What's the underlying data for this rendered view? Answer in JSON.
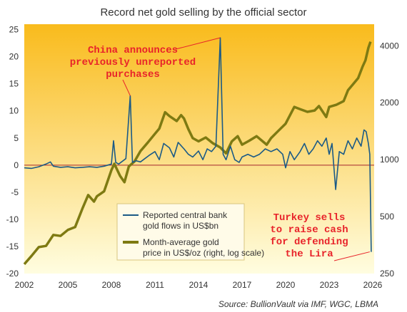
{
  "chart_data": {
    "type": "line",
    "title": "Record net gold selling by the official sector",
    "source": "Source: BullionVault via IMF, WGC, LBMA",
    "x_ticks": [
      "2002",
      "2005",
      "2008",
      "2011",
      "2014",
      "2017",
      "2020",
      "2023",
      "2026"
    ],
    "x_range": [
      2002.0,
      2026.1
    ],
    "y_left_ticks": [
      "25",
      "20",
      "15",
      "10",
      "5",
      "0",
      "-5",
      "-10",
      "-15",
      "-20"
    ],
    "y_left_range": [
      -20,
      26
    ],
    "y_right_ticks": [
      "4000",
      "2000",
      "1000",
      "500",
      "250"
    ],
    "y_right_range": [
      250,
      5200
    ],
    "y_right_scale": "log",
    "zero_line": true,
    "legend_position": "bottom-center",
    "colors": {
      "background_top": "#f9bb1c",
      "background_bottom": "#fffde0",
      "flows": "#1b5a86",
      "price": "#7e7a12",
      "zero_line": "#a5262d",
      "annotation": "#e8232a"
    },
    "annotations": [
      {
        "lines": [
          "China announces",
          "previously unreported",
          "purchases"
        ],
        "points_to": [
          {
            "x": 2009.3,
            "y": 12.8
          },
          {
            "x": 2015.5,
            "y": 23.5
          }
        ]
      },
      {
        "lines": [
          "Turkey sells",
          "to raise cash",
          "for defending",
          "the Lira"
        ],
        "points_to": [
          {
            "x": 2025.8,
            "y": -16
          }
        ]
      }
    ],
    "series": [
      {
        "name": "Reported central bank gold flows in US$bn",
        "axis": "left",
        "x": [
          2002.0,
          2002.5,
          2003.0,
          2003.5,
          2003.8,
          2004.0,
          2004.5,
          2005.0,
          2005.5,
          2006.0,
          2006.5,
          2007.0,
          2007.5,
          2008.0,
          2008.15,
          2008.3,
          2008.5,
          2009.0,
          2009.3,
          2009.45,
          2009.7,
          2010.0,
          2010.3,
          2010.6,
          2011.0,
          2011.3,
          2011.6,
          2012.0,
          2012.3,
          2012.6,
          2013.0,
          2013.3,
          2013.6,
          2014.0,
          2014.3,
          2014.6,
          2014.9,
          2015.2,
          2015.5,
          2015.7,
          2015.9,
          2016.2,
          2016.5,
          2016.8,
          2017.0,
          2017.4,
          2017.8,
          2018.2,
          2018.6,
          2019.0,
          2019.4,
          2019.8,
          2020.0,
          2020.3,
          2020.6,
          2021.0,
          2021.3,
          2021.6,
          2021.9,
          2022.2,
          2022.5,
          2022.8,
          2023.0,
          2023.2,
          2023.45,
          2023.7,
          2024.0,
          2024.3,
          2024.6,
          2024.9,
          2025.2,
          2025.4,
          2025.55,
          2025.7,
          2025.8,
          2025.9
        ],
        "values": [
          -0.5,
          -0.6,
          -0.3,
          0.2,
          0.6,
          -0.2,
          -0.4,
          -0.3,
          -0.5,
          -0.4,
          -0.3,
          -0.4,
          -0.2,
          0.2,
          4.5,
          0.5,
          0.2,
          1.2,
          12.8,
          0.5,
          0.8,
          0.6,
          1.2,
          1.8,
          2.5,
          1.0,
          4.0,
          3.2,
          1.5,
          4.2,
          3.0,
          2.0,
          1.5,
          2.6,
          1.0,
          3.0,
          2.5,
          3.5,
          23.5,
          2.0,
          1.0,
          3.5,
          1.0,
          0.5,
          1.5,
          2.0,
          1.5,
          2.0,
          3.0,
          2.5,
          3.0,
          2.0,
          -0.5,
          2.5,
          1.0,
          2.5,
          4.0,
          2.0,
          3.0,
          4.5,
          3.5,
          5.0,
          2.0,
          4.0,
          -4.5,
          2.5,
          2.0,
          4.5,
          3.0,
          5.0,
          3.5,
          6.5,
          6.2,
          4.0,
          2.0,
          -16.0
        ]
      },
      {
        "name": "Month-average gold price in US$/oz (right, log scale)",
        "axis": "right",
        "x": [
          2002.0,
          2002.5,
          2003.0,
          2003.5,
          2004.0,
          2004.5,
          2005.0,
          2005.5,
          2006.0,
          2006.4,
          2006.8,
          2007.0,
          2007.5,
          2008.0,
          2008.2,
          2008.6,
          2008.9,
          2009.2,
          2009.6,
          2010.0,
          2010.5,
          2011.0,
          2011.3,
          2011.7,
          2012.0,
          2012.5,
          2012.8,
          2013.0,
          2013.3,
          2013.6,
          2014.0,
          2014.5,
          2015.0,
          2015.5,
          2015.9,
          2016.3,
          2016.7,
          2017.0,
          2017.5,
          2018.0,
          2018.7,
          2019.0,
          2019.5,
          2020.0,
          2020.6,
          2021.0,
          2021.5,
          2022.0,
          2022.3,
          2022.8,
          2023.0,
          2023.5,
          2024.0,
          2024.3,
          2024.6,
          2025.0,
          2025.3,
          2025.5,
          2025.7,
          2025.85
        ],
        "values": [
          280,
          310,
          345,
          350,
          400,
          395,
          425,
          440,
          550,
          650,
          600,
          640,
          680,
          880,
          950,
          820,
          760,
          920,
          980,
          1110,
          1230,
          1370,
          1460,
          1780,
          1700,
          1600,
          1720,
          1650,
          1450,
          1300,
          1250,
          1310,
          1220,
          1160,
          1080,
          1250,
          1330,
          1200,
          1260,
          1330,
          1200,
          1300,
          1420,
          1550,
          1900,
          1850,
          1790,
          1820,
          1920,
          1680,
          1900,
          1950,
          2040,
          2330,
          2480,
          2700,
          3100,
          3350,
          3900,
          4200
        ]
      }
    ]
  }
}
